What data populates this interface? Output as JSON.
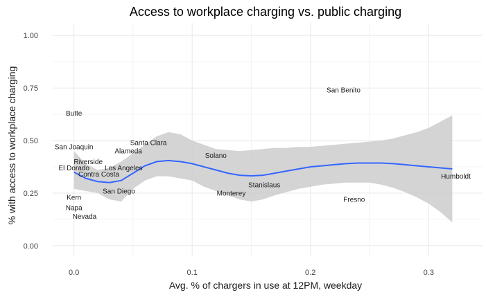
{
  "chart_data": {
    "type": "scatter",
    "title": "Access to workplace charging vs. public charging",
    "xlabel": "Avg. % of chargers in use at 12PM, weekday",
    "ylabel": "% with access to workplace charging",
    "xlim": [
      -0.018,
      0.345
    ],
    "ylim": [
      -0.05,
      1.06
    ],
    "x_ticks": [
      0.0,
      0.1,
      0.2,
      0.3
    ],
    "x_tick_labels": [
      "0.0",
      "0.1",
      "0.2",
      "0.3"
    ],
    "y_ticks": [
      0.0,
      0.25,
      0.5,
      0.75,
      1.0
    ],
    "y_tick_labels": [
      "0.00",
      "0.25",
      "0.50",
      "0.75",
      "1.00"
    ],
    "grid": true,
    "points": [
      {
        "label": "Butte",
        "x": 0.0,
        "y": 0.63
      },
      {
        "label": "San Joaquin",
        "x": 0.0,
        "y": 0.47
      },
      {
        "label": "Riverside",
        "x": 0.012,
        "y": 0.4
      },
      {
        "label": "El Dorado",
        "x": 0.0,
        "y": 0.37
      },
      {
        "label": "Contra Costa",
        "x": 0.021,
        "y": 0.34
      },
      {
        "label": "Kern",
        "x": 0.0,
        "y": 0.23
      },
      {
        "label": "Napa",
        "x": 0.0,
        "y": 0.18
      },
      {
        "label": "Nevada",
        "x": 0.009,
        "y": 0.14
      },
      {
        "label": "Santa Clara",
        "x": 0.063,
        "y": 0.49
      },
      {
        "label": "Alameda",
        "x": 0.046,
        "y": 0.45
      },
      {
        "label": "Los Angeles",
        "x": 0.042,
        "y": 0.37
      },
      {
        "label": "San Diego",
        "x": 0.038,
        "y": 0.26
      },
      {
        "label": "Solano",
        "x": 0.12,
        "y": 0.43
      },
      {
        "label": "Stanislaus",
        "x": 0.161,
        "y": 0.29
      },
      {
        "label": "Monterey",
        "x": 0.133,
        "y": 0.25
      },
      {
        "label": "San Benito",
        "x": 0.228,
        "y": 0.74
      },
      {
        "label": "Fresno",
        "x": 0.237,
        "y": 0.22
      },
      {
        "label": "Humboldt",
        "x": 0.323,
        "y": 0.33
      }
    ],
    "smooth_line": {
      "x": [
        0.0,
        0.01,
        0.02,
        0.03,
        0.04,
        0.05,
        0.06,
        0.07,
        0.08,
        0.09,
        0.1,
        0.11,
        0.12,
        0.13,
        0.14,
        0.15,
        0.16,
        0.17,
        0.18,
        0.19,
        0.2,
        0.21,
        0.22,
        0.23,
        0.24,
        0.25,
        0.26,
        0.27,
        0.28,
        0.29,
        0.3,
        0.31,
        0.32
      ],
      "fit": [
        0.35,
        0.32,
        0.305,
        0.3,
        0.31,
        0.345,
        0.38,
        0.4,
        0.405,
        0.4,
        0.39,
        0.375,
        0.36,
        0.345,
        0.335,
        0.332,
        0.335,
        0.345,
        0.355,
        0.365,
        0.375,
        0.38,
        0.385,
        0.39,
        0.393,
        0.393,
        0.393,
        0.39,
        0.385,
        0.38,
        0.375,
        0.37,
        0.365
      ],
      "lower": [
        0.27,
        0.26,
        0.25,
        0.22,
        0.21,
        0.27,
        0.31,
        0.33,
        0.33,
        0.32,
        0.31,
        0.28,
        0.26,
        0.24,
        0.22,
        0.21,
        0.22,
        0.24,
        0.255,
        0.27,
        0.28,
        0.29,
        0.295,
        0.3,
        0.3,
        0.3,
        0.29,
        0.275,
        0.255,
        0.23,
        0.2,
        0.16,
        0.11
      ],
      "upper": [
        0.45,
        0.39,
        0.36,
        0.37,
        0.4,
        0.44,
        0.48,
        0.52,
        0.54,
        0.53,
        0.5,
        0.48,
        0.46,
        0.455,
        0.45,
        0.455,
        0.46,
        0.465,
        0.465,
        0.47,
        0.47,
        0.475,
        0.48,
        0.485,
        0.49,
        0.495,
        0.5,
        0.51,
        0.525,
        0.54,
        0.56,
        0.59,
        0.62
      ]
    },
    "colors": {
      "line": "#3366ff",
      "ribbon": "#cccccc",
      "grid": "#ebebeb"
    }
  }
}
